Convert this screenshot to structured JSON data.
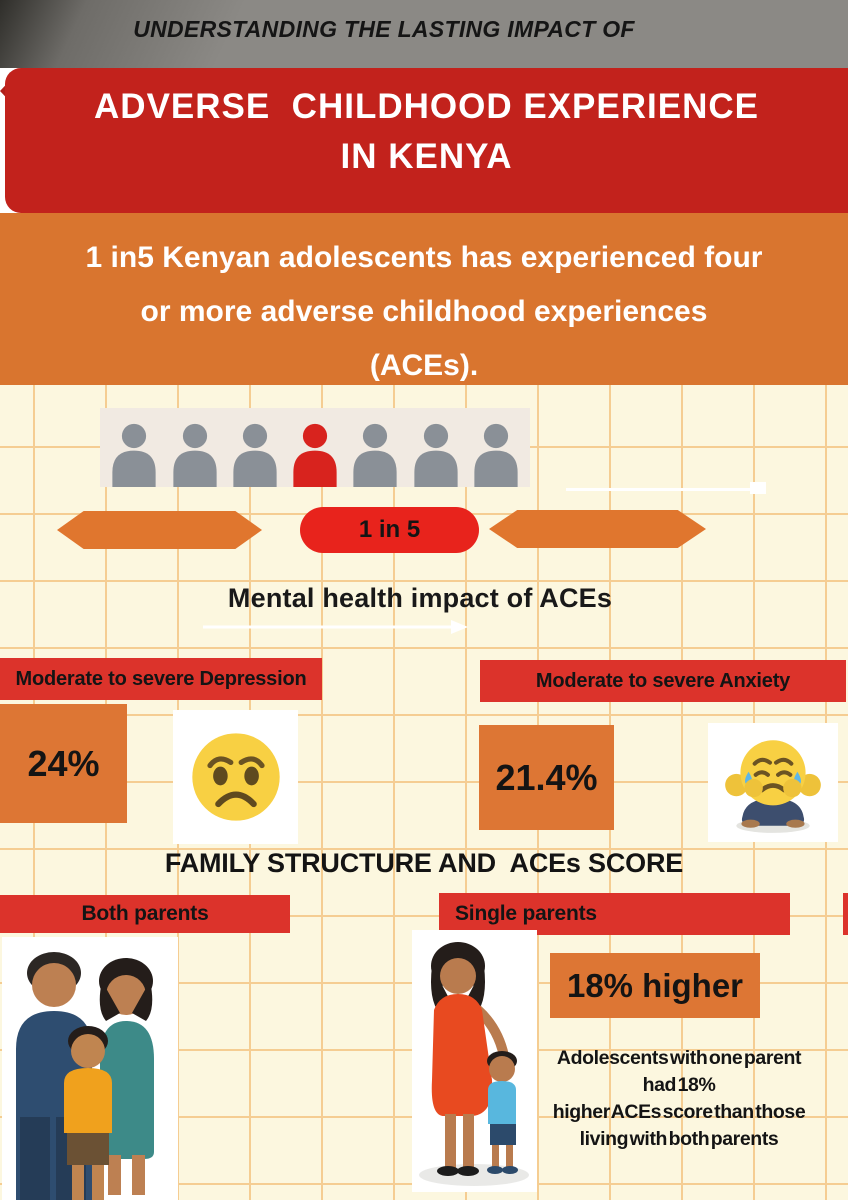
{
  "header": {
    "kicker": "UNDERSTANDING THE LASTING IMPACT OF",
    "title_line1": "ADVERSE  CHILDHOOD EXPERIENCE",
    "title_line2": "IN KENYA"
  },
  "intro": {
    "line1": "1 in5 Kenyan adolescents has experienced four",
    "line2": "or more adverse childhood experiences",
    "line3": "(ACEs)."
  },
  "ratio": {
    "label": "1 in 5",
    "people_total": 7,
    "highlighted_index": 4
  },
  "mental_health": {
    "heading": "Mental health impact of ACEs",
    "depression": {
      "label": "Moderate to severe Depression",
      "value": "24%",
      "emoji": "worried-face"
    },
    "anxiety": {
      "label": "Moderate to severe Anxiety",
      "value": "21.4%",
      "emoji": "anxious-crying-face"
    }
  },
  "family_structure": {
    "heading": "FAMILY STRUCTURE AND  ACEs SCORE",
    "both_parents_label": "Both parents",
    "single_parents_label": "Single parents",
    "highlight_value": "18% higher",
    "stat_lines": [
      "Adolescents with one parent",
      "had 18%",
      "higher ACEs score than those",
      "living with both parents"
    ]
  },
  "colors": {
    "banner_red": "#c2221c",
    "bar_red": "#dc332b",
    "pill_red": "#e8231c",
    "banner_orange": "#d9752f",
    "box_orange": "#dd7634",
    "cream_background": "#fcf7df",
    "grid_line": "#f5cd92",
    "header_gray": "#8b8985",
    "crowd_gray": "#8a9097",
    "crowd_highlight_red": "#d8231e"
  },
  "chart_data": {
    "type": "table",
    "title": "Adverse Childhood Experience in Kenya",
    "categories": [
      "Adolescents with four or more ACEs",
      "Moderate to severe Depression",
      "Moderate to severe Anxiety",
      "ACEs score of single-parent adolescents vs both parents"
    ],
    "values": [
      "1 in 5",
      "24%",
      "21.4%",
      "18% higher"
    ]
  }
}
